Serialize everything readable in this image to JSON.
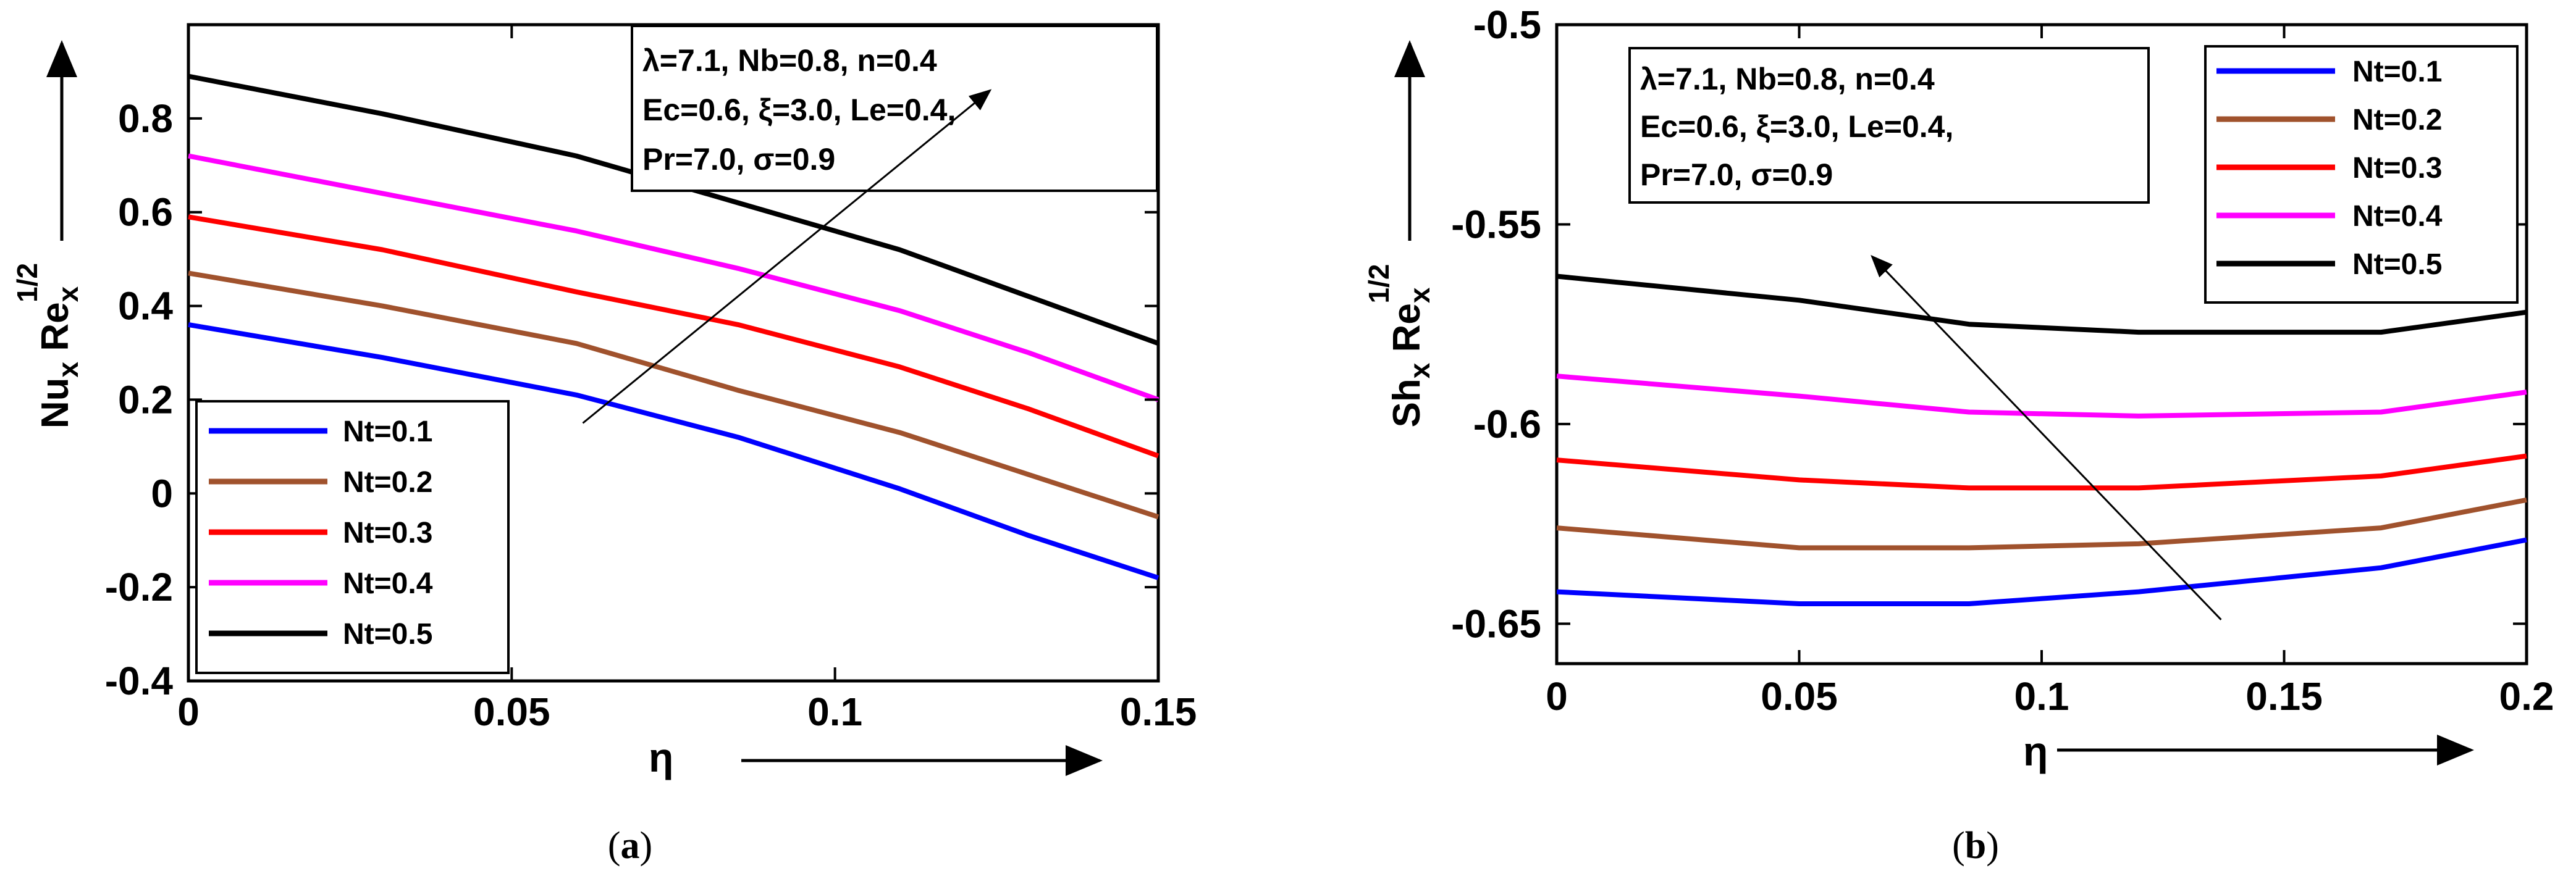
{
  "chart_data": [
    {
      "id": "a",
      "type": "line",
      "caption_letter": "a",
      "xlabel": "η",
      "ylabel_main": "Nu",
      "ylabel_sub": "x",
      "ylabel_re": " Re",
      "ylabel_re_sub": "x",
      "ylabel_sup": "1/2",
      "xlim": [
        0,
        0.15
      ],
      "ylim": [
        -0.4,
        1.0
      ],
      "xticks": [
        0,
        0.05,
        0.1,
        0.15
      ],
      "xtick_labels": [
        "0",
        "0.05",
        "0.1",
        "0.15"
      ],
      "yticks": [
        -0.4,
        -0.2,
        0,
        0.2,
        0.4,
        0.6,
        0.8
      ],
      "ytick_labels": [
        "-0.4",
        "-0.2",
        "0",
        "0.2",
        "0.4",
        "0.6",
        "0.8"
      ],
      "annotation_lines": [
        "λ=7.1, Nb=0.8, n=0.4",
        "Ec=0.6, ξ=3.0, Le=0.4,",
        "Pr=7.0, σ=0.9"
      ],
      "legend_position": "bottom-left",
      "trend_arrow": {
        "from": [
          0.061,
          0.15
        ],
        "to": [
          0.124,
          0.86
        ]
      },
      "series": [
        {
          "name": "Nt=0.1",
          "color": "#0000ff",
          "x": [
            0,
            0.03,
            0.06,
            0.085,
            0.11,
            0.13,
            0.15
          ],
          "y": [
            0.36,
            0.29,
            0.21,
            0.12,
            0.01,
            -0.09,
            -0.18
          ]
        },
        {
          "name": "Nt=0.2",
          "color": "#a0522d",
          "x": [
            0,
            0.03,
            0.06,
            0.085,
            0.11,
            0.13,
            0.15
          ],
          "y": [
            0.47,
            0.4,
            0.32,
            0.22,
            0.13,
            0.04,
            -0.05
          ]
        },
        {
          "name": "Nt=0.3",
          "color": "#ff0000",
          "x": [
            0,
            0.03,
            0.06,
            0.085,
            0.11,
            0.13,
            0.15
          ],
          "y": [
            0.59,
            0.52,
            0.43,
            0.36,
            0.27,
            0.18,
            0.08
          ]
        },
        {
          "name": "Nt=0.4",
          "color": "#ff00ff",
          "x": [
            0,
            0.03,
            0.06,
            0.085,
            0.11,
            0.13,
            0.15
          ],
          "y": [
            0.72,
            0.64,
            0.56,
            0.48,
            0.39,
            0.3,
            0.2
          ]
        },
        {
          "name": "Nt=0.5",
          "color": "#000000",
          "x": [
            0,
            0.03,
            0.06,
            0.085,
            0.11,
            0.13,
            0.15
          ],
          "y": [
            0.89,
            0.81,
            0.72,
            0.62,
            0.52,
            0.42,
            0.32
          ]
        }
      ]
    },
    {
      "id": "b",
      "type": "line",
      "caption_letter": "b",
      "xlabel": "η",
      "ylabel_main": "Sh",
      "ylabel_sub": "x",
      "ylabel_re": " Re",
      "ylabel_re_sub": "x",
      "ylabel_sup": "1/2",
      "xlim": [
        0,
        0.2
      ],
      "ylim": [
        -0.66,
        -0.5
      ],
      "xticks": [
        0,
        0.05,
        0.1,
        0.15,
        0.2
      ],
      "xtick_labels": [
        "0",
        "0.05",
        "0.1",
        "0.15",
        "0.2"
      ],
      "yticks": [
        -0.65,
        -0.6,
        -0.55,
        -0.5
      ],
      "ytick_labels": [
        "-0.65",
        "-0.6",
        "-0.55",
        "-0.5"
      ],
      "annotation_lines": [
        "λ=7.1, Nb=0.8, n=0.4",
        "Ec=0.6, ξ=3.0, Le=0.4,",
        "Pr=7.0, σ=0.9"
      ],
      "legend_position": "top-right",
      "trend_arrow": {
        "from": [
          0.137,
          -0.649
        ],
        "to": [
          0.065,
          -0.558
        ]
      },
      "series": [
        {
          "name": "Nt=0.1",
          "color": "#0000ff",
          "x": [
            0,
            0.05,
            0.085,
            0.12,
            0.17,
            0.2
          ],
          "y": [
            -0.642,
            -0.645,
            -0.645,
            -0.642,
            -0.636,
            -0.629
          ]
        },
        {
          "name": "Nt=0.2",
          "color": "#a0522d",
          "x": [
            0,
            0.05,
            0.085,
            0.12,
            0.17,
            0.2
          ],
          "y": [
            -0.626,
            -0.631,
            -0.631,
            -0.63,
            -0.626,
            -0.619
          ]
        },
        {
          "name": "Nt=0.3",
          "color": "#ff0000",
          "x": [
            0,
            0.05,
            0.085,
            0.12,
            0.17,
            0.2
          ],
          "y": [
            -0.609,
            -0.614,
            -0.616,
            -0.616,
            -0.613,
            -0.608
          ]
        },
        {
          "name": "Nt=0.4",
          "color": "#ff00ff",
          "x": [
            0,
            0.05,
            0.085,
            0.12,
            0.17,
            0.2
          ],
          "y": [
            -0.588,
            -0.593,
            -0.597,
            -0.598,
            -0.597,
            -0.592
          ]
        },
        {
          "name": "Nt=0.5",
          "color": "#000000",
          "x": [
            0,
            0.05,
            0.085,
            0.12,
            0.17,
            0.2
          ],
          "y": [
            -0.563,
            -0.569,
            -0.575,
            -0.577,
            -0.577,
            -0.572
          ]
        }
      ]
    }
  ]
}
